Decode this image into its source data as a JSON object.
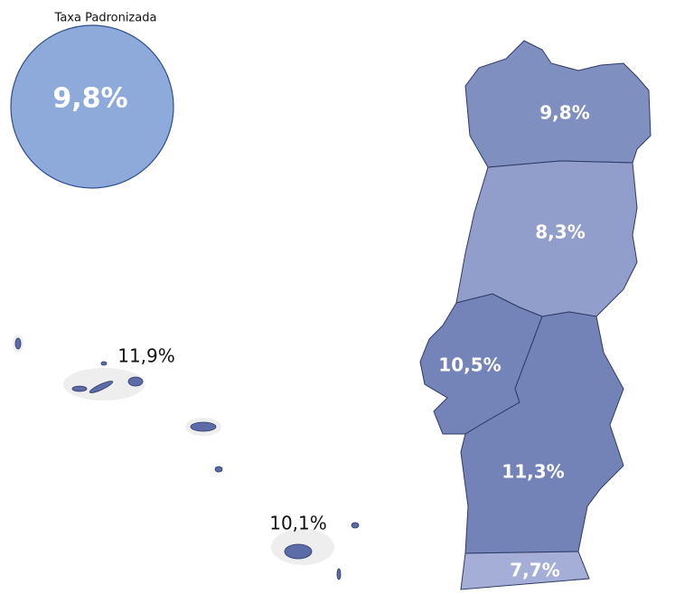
{
  "title": "Taxa Padronizada",
  "national": {
    "label": "9,8%"
  },
  "regions": [
    {
      "label": "9,8%"
    },
    {
      "label": "8,3%"
    },
    {
      "label": "10,5%"
    },
    {
      "label": "11,3%"
    },
    {
      "label": "7,7%"
    },
    {
      "label": "11,9%"
    },
    {
      "label": "10,1%"
    }
  ]
}
